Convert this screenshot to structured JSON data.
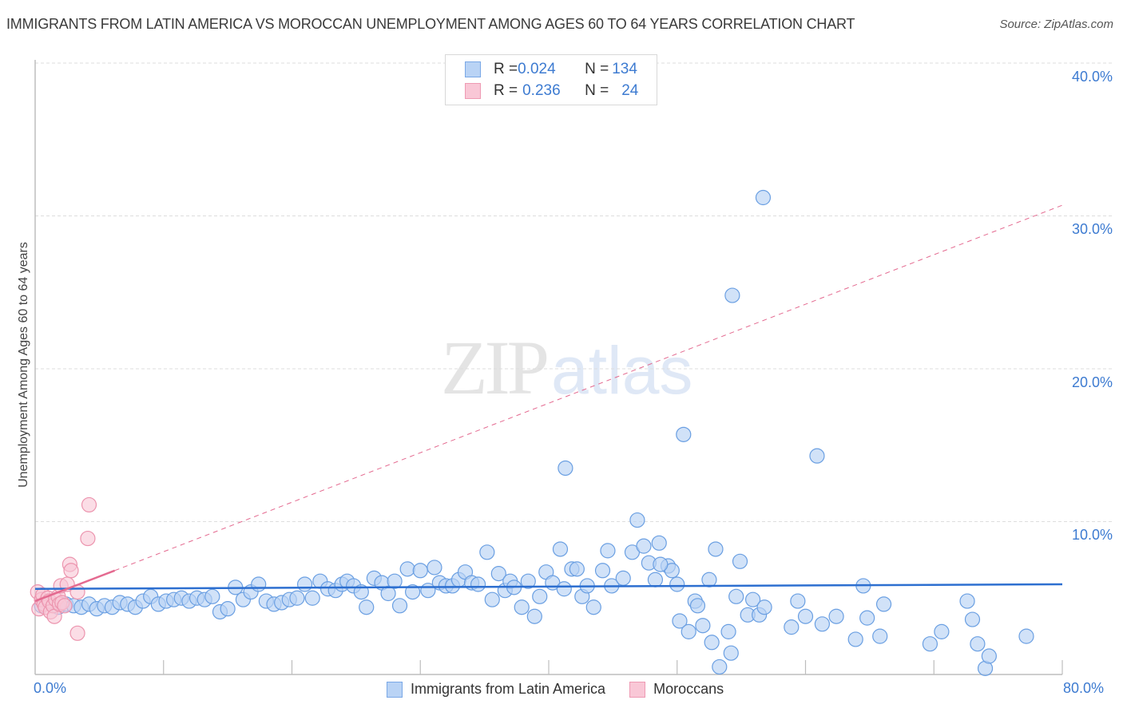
{
  "header": {
    "title": "IMMIGRANTS FROM LATIN AMERICA VS MOROCCAN UNEMPLOYMENT AMONG AGES 60 TO 64 YEARS CORRELATION CHART",
    "source": "Source: ZipAtlas.com"
  },
  "watermark": {
    "zip": "ZIP",
    "atlas": "atlas"
  },
  "legend": {
    "series": [
      {
        "r_label": "R = ",
        "r_value": "0.024",
        "n_label": "N = ",
        "n_value": "134",
        "fill": "#b9d3f5",
        "stroke": "#7aa8e6"
      },
      {
        "r_label": "R = ",
        "r_value": "0.236",
        "n_label": "N = ",
        "n_value": "24",
        "fill": "#f9c7d6",
        "stroke": "#ee9ab3"
      }
    ]
  },
  "bottom_legend": {
    "items": [
      {
        "label": "Immigrants from Latin America"
      },
      {
        "label": "Moroccans"
      }
    ]
  },
  "axes": {
    "y_label": "Unemployment Among Ages 60 to 64 years",
    "y_ticks": [
      "40.0%",
      "30.0%",
      "20.0%",
      "10.0%"
    ],
    "x_min_label": "0.0%",
    "x_max_label": "80.0%"
  },
  "colors": {
    "blue_fill": "#b9d3f5",
    "blue_stroke": "#6a9fe2",
    "blue_line": "#2d6fd0",
    "pink_fill": "#f9c7d6",
    "pink_stroke": "#ec94ae",
    "pink_line": "#e46a90",
    "grid": "#dddddd",
    "axis": "#bdbdbd",
    "tick_text": "#3d7bd1"
  },
  "chart_data": {
    "type": "scatter",
    "title": "IMMIGRANTS FROM LATIN AMERICA VS MOROCCAN UNEMPLOYMENT AMONG AGES 60 TO 64 YEARS CORRELATION CHART",
    "xlabel": "",
    "ylabel": "Unemployment Among Ages 60 to 64 years",
    "xlim": [
      0,
      80
    ],
    "ylim": [
      0,
      40
    ],
    "x_ticks": [
      0,
      10,
      20,
      30,
      40,
      50,
      60,
      70,
      80
    ],
    "y_ticks": [
      10,
      20,
      30,
      40
    ],
    "grid": true,
    "legend_position": "top-center",
    "series": [
      {
        "name": "Immigrants from Latin America",
        "R": 0.024,
        "N": 134,
        "trend": {
          "x": [
            0,
            80
          ],
          "y": [
            5.6,
            5.9
          ],
          "style": "solid"
        },
        "points": [
          [
            0.5,
            4.5
          ],
          [
            1.2,
            4.7
          ],
          [
            1.8,
            4.4
          ],
          [
            2.4,
            4.6
          ],
          [
            3.0,
            4.5
          ],
          [
            3.6,
            4.4
          ],
          [
            4.2,
            4.6
          ],
          [
            4.8,
            4.3
          ],
          [
            5.4,
            4.5
          ],
          [
            6.0,
            4.4
          ],
          [
            6.6,
            4.7
          ],
          [
            7.2,
            4.6
          ],
          [
            7.8,
            4.4
          ],
          [
            8.4,
            4.8
          ],
          [
            9.0,
            5.1
          ],
          [
            9.6,
            4.6
          ],
          [
            10.2,
            4.8
          ],
          [
            10.8,
            4.9
          ],
          [
            11.4,
            5.0
          ],
          [
            12.0,
            4.8
          ],
          [
            12.6,
            5.0
          ],
          [
            13.2,
            4.9
          ],
          [
            13.8,
            5.1
          ],
          [
            14.4,
            4.1
          ],
          [
            15.0,
            4.3
          ],
          [
            15.6,
            5.7
          ],
          [
            16.2,
            4.9
          ],
          [
            16.8,
            5.4
          ],
          [
            17.4,
            5.9
          ],
          [
            18.0,
            4.8
          ],
          [
            18.6,
            4.6
          ],
          [
            19.2,
            4.7
          ],
          [
            19.8,
            4.9
          ],
          [
            20.4,
            5.0
          ],
          [
            21.0,
            5.9
          ],
          [
            21.6,
            5.0
          ],
          [
            22.2,
            6.1
          ],
          [
            22.8,
            5.6
          ],
          [
            23.4,
            5.5
          ],
          [
            23.9,
            5.9
          ],
          [
            24.3,
            6.1
          ],
          [
            24.8,
            5.8
          ],
          [
            25.4,
            5.4
          ],
          [
            25.8,
            4.4
          ],
          [
            26.4,
            6.3
          ],
          [
            27.0,
            6.0
          ],
          [
            27.5,
            5.3
          ],
          [
            28.0,
            6.1
          ],
          [
            28.4,
            4.5
          ],
          [
            29.0,
            6.9
          ],
          [
            29.4,
            5.4
          ],
          [
            30.0,
            6.8
          ],
          [
            30.6,
            5.5
          ],
          [
            31.1,
            7.0
          ],
          [
            31.5,
            6.0
          ],
          [
            32.0,
            5.8
          ],
          [
            32.5,
            5.8
          ],
          [
            33.0,
            6.2
          ],
          [
            33.5,
            6.7
          ],
          [
            34.0,
            6.0
          ],
          [
            34.5,
            5.9
          ],
          [
            35.2,
            8.0
          ],
          [
            35.6,
            4.9
          ],
          [
            36.1,
            6.6
          ],
          [
            36.6,
            5.5
          ],
          [
            37.0,
            6.1
          ],
          [
            37.3,
            5.7
          ],
          [
            37.9,
            4.4
          ],
          [
            38.4,
            6.1
          ],
          [
            38.9,
            3.8
          ],
          [
            39.3,
            5.1
          ],
          [
            39.8,
            6.7
          ],
          [
            40.3,
            6.0
          ],
          [
            40.9,
            8.2
          ],
          [
            41.2,
            5.6
          ],
          [
            41.8,
            6.9
          ],
          [
            42.2,
            6.9
          ],
          [
            42.6,
            5.1
          ],
          [
            43.0,
            5.8
          ],
          [
            43.5,
            4.4
          ],
          [
            44.2,
            6.8
          ],
          [
            44.6,
            8.1
          ],
          [
            44.9,
            5.8
          ],
          [
            45.8,
            6.3
          ],
          [
            46.5,
            8.0
          ],
          [
            46.9,
            10.1
          ],
          [
            47.4,
            8.4
          ],
          [
            47.8,
            7.3
          ],
          [
            48.3,
            6.2
          ],
          [
            48.6,
            8.6
          ],
          [
            49.3,
            7.1
          ],
          [
            49.6,
            6.8
          ],
          [
            50.0,
            5.9
          ],
          [
            50.2,
            3.5
          ],
          [
            50.9,
            2.8
          ],
          [
            51.4,
            4.8
          ],
          [
            51.6,
            4.5
          ],
          [
            52.0,
            3.2
          ],
          [
            52.5,
            6.2
          ],
          [
            52.7,
            2.1
          ],
          [
            53.0,
            8.2
          ],
          [
            53.3,
            0.5
          ],
          [
            54.0,
            2.8
          ],
          [
            54.2,
            1.4
          ],
          [
            54.6,
            5.1
          ],
          [
            54.9,
            7.4
          ],
          [
            55.5,
            3.9
          ],
          [
            55.9,
            4.9
          ],
          [
            56.4,
            3.9
          ],
          [
            56.8,
            4.4
          ],
          [
            58.9,
            3.1
          ],
          [
            59.4,
            4.8
          ],
          [
            60.0,
            3.8
          ],
          [
            61.3,
            3.3
          ],
          [
            62.4,
            3.8
          ],
          [
            63.9,
            2.3
          ],
          [
            64.5,
            5.8
          ],
          [
            64.8,
            3.7
          ],
          [
            65.8,
            2.5
          ],
          [
            66.1,
            4.6
          ],
          [
            69.7,
            2.0
          ],
          [
            70.6,
            2.8
          ],
          [
            72.6,
            4.8
          ],
          [
            73.0,
            3.6
          ],
          [
            73.4,
            2.0
          ],
          [
            74.0,
            0.4
          ],
          [
            74.3,
            1.2
          ],
          [
            77.2,
            2.5
          ],
          [
            60.9,
            14.3
          ],
          [
            56.7,
            31.2
          ],
          [
            54.3,
            24.8
          ],
          [
            50.5,
            15.7
          ],
          [
            41.3,
            13.5
          ],
          [
            48.7,
            7.2
          ]
        ]
      },
      {
        "name": "Moroccans",
        "R": 0.236,
        "N": 24,
        "trend": {
          "x": [
            0,
            6.2
          ],
          "y": [
            4.8,
            6.8
          ],
          "style": "solid",
          "extension": {
            "x": [
              6.2,
              80
            ],
            "y": [
              6.8,
              30.7
            ],
            "style": "dashed"
          }
        },
        "points": [
          [
            0.2,
            5.4
          ],
          [
            0.3,
            4.3
          ],
          [
            0.5,
            4.9
          ],
          [
            0.6,
            5.2
          ],
          [
            0.7,
            4.6
          ],
          [
            0.8,
            4.4
          ],
          [
            1.0,
            5.0
          ],
          [
            1.1,
            4.8
          ],
          [
            1.2,
            4.1
          ],
          [
            1.4,
            4.5
          ],
          [
            1.5,
            3.8
          ],
          [
            1.6,
            4.9
          ],
          [
            1.8,
            5.1
          ],
          [
            1.9,
            4.6
          ],
          [
            2.0,
            5.8
          ],
          [
            2.1,
            4.7
          ],
          [
            2.3,
            4.5
          ],
          [
            2.5,
            5.9
          ],
          [
            2.7,
            7.2
          ],
          [
            2.8,
            6.8
          ],
          [
            3.3,
            5.4
          ],
          [
            3.3,
            2.7
          ],
          [
            4.1,
            8.9
          ],
          [
            4.2,
            11.1
          ]
        ]
      }
    ]
  }
}
